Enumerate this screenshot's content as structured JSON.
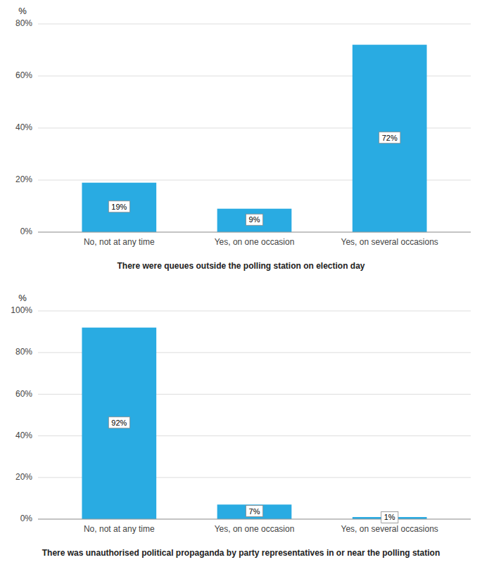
{
  "chart_data": [
    {
      "type": "bar",
      "categories": [
        "No, not at any time",
        "Yes, on one occasion",
        "Yes, on several occasions"
      ],
      "values": [
        19,
        9,
        72
      ],
      "value_labels": [
        "19%",
        "9%",
        "72%"
      ],
      "data_labels": true,
      "color": "#29ABE2",
      "ylabel": "%",
      "xlabel": "There were queues outside the polling station on election day",
      "ylim": [
        0,
        80
      ],
      "yticks": [
        {
          "value": 0,
          "label": "0%"
        },
        {
          "value": 20,
          "label": "20%"
        },
        {
          "value": 40,
          "label": "40%"
        },
        {
          "value": 60,
          "label": "60%"
        },
        {
          "value": 80,
          "label": "80%"
        }
      ],
      "grid": true
    },
    {
      "type": "bar",
      "categories": [
        "No, not at any time",
        "Yes, on one occasion",
        "Yes, on several occasions"
      ],
      "values": [
        92,
        7,
        1
      ],
      "value_labels": [
        "92%",
        "7%",
        "1%"
      ],
      "data_labels": true,
      "color": "#29ABE2",
      "ylabel": "%",
      "xlabel": "There was unauthorised political propaganda by party representatives in or near the polling station",
      "ylim": [
        0,
        100
      ],
      "yticks": [
        {
          "value": 0,
          "label": "0%"
        },
        {
          "value": 20,
          "label": "20%"
        },
        {
          "value": 40,
          "label": "40%"
        },
        {
          "value": 60,
          "label": "60%"
        },
        {
          "value": 80,
          "label": "80%"
        },
        {
          "value": 100,
          "label": "100%"
        }
      ],
      "grid": true
    }
  ]
}
